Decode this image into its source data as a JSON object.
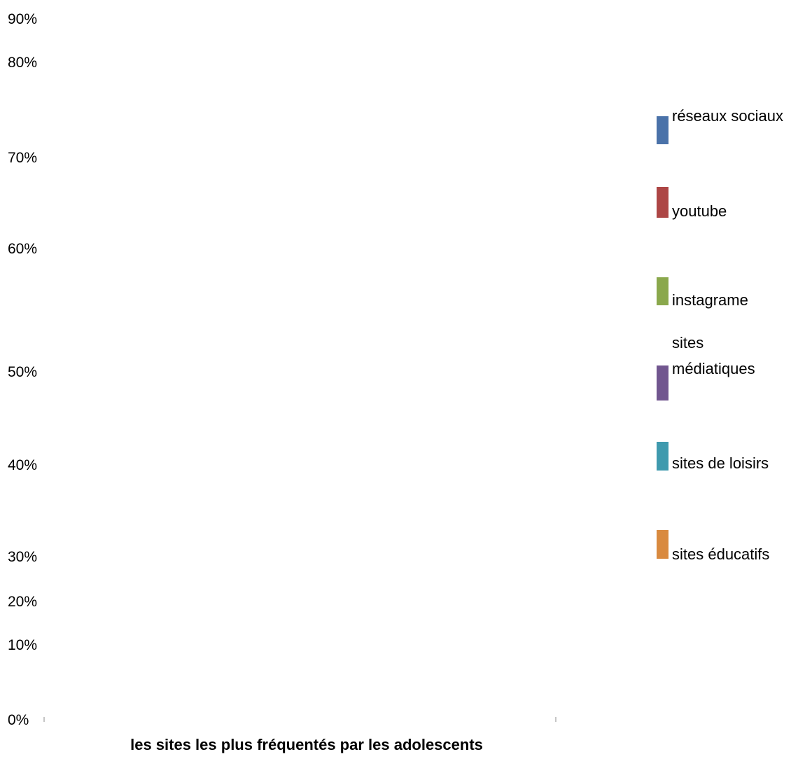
{
  "chart_data": {
    "type": "bar",
    "title": "",
    "xlabel": "les sites les plus fréquentés par les adolescents",
    "ylabel": "",
    "ylim": [
      0,
      0.9
    ],
    "grid": false,
    "legend_position": "right",
    "categories": [
      ""
    ],
    "y_ticks": [
      "0%",
      "10%",
      "20%",
      "30%",
      "40%",
      "50%",
      "60%",
      "70%",
      "80%",
      "90%"
    ],
    "series": [
      {
        "name": "réseaux sociaux",
        "color": "#4a72a9",
        "values": [
          null
        ]
      },
      {
        "name": "youtube",
        "color": "#ad4645",
        "values": [
          null
        ]
      },
      {
        "name": "instagrame",
        "color": "#8aa84c",
        "values": [
          null
        ]
      },
      {
        "name": "sites médiatiques",
        "color": "#71568f",
        "values": [
          null
        ]
      },
      {
        "name": "sites de loisirs",
        "color": "#3f9aae",
        "values": [
          null
        ]
      },
      {
        "name": "sites éducatifs",
        "color": "#d98a3f",
        "values": [
          null
        ]
      }
    ]
  }
}
